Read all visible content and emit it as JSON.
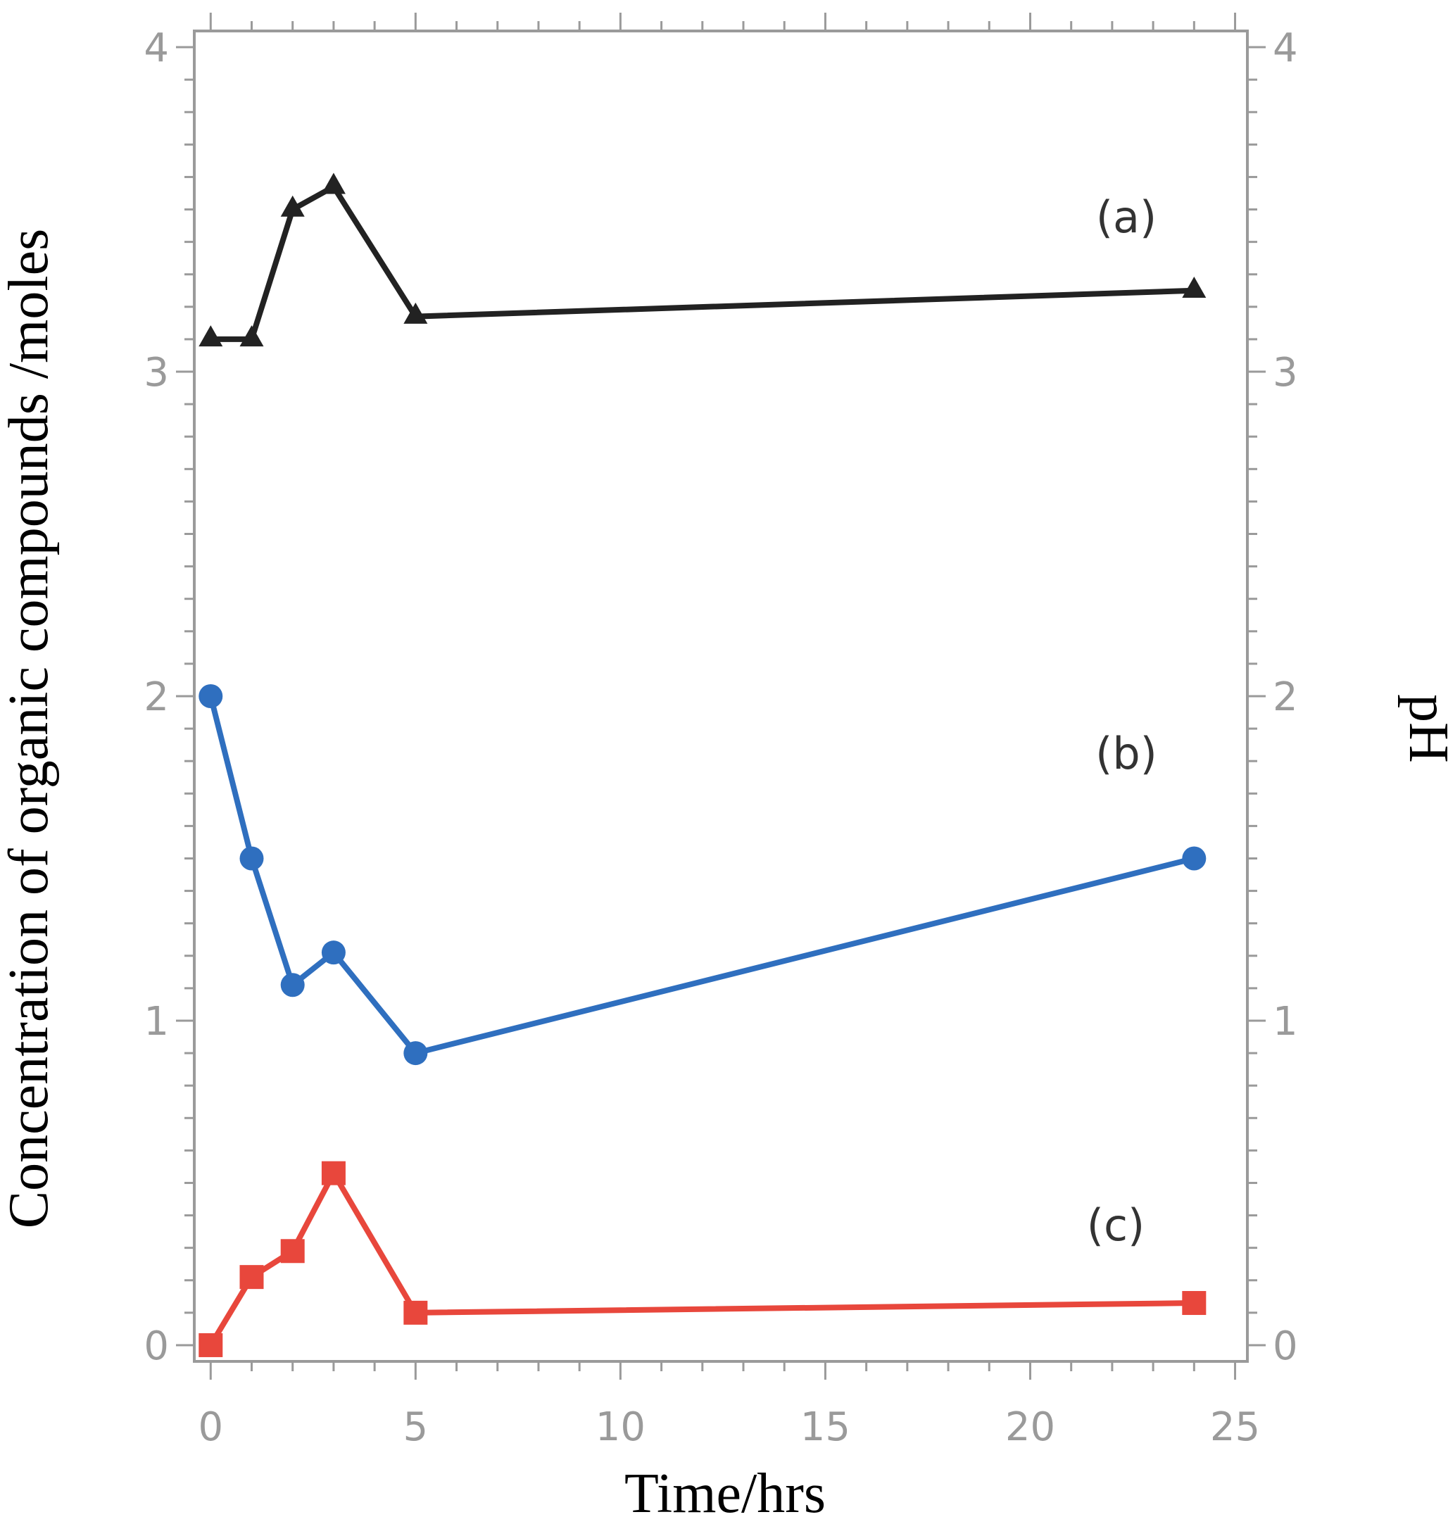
{
  "chart_data": {
    "type": "line",
    "xlabel": "Time/hrs",
    "ylabel": "Concentration of organic compounds /moles",
    "y2label": "pH",
    "xlim": [
      -0.4,
      25.3
    ],
    "ylim": [
      -0.05,
      4.05
    ],
    "xticks": [
      0,
      5,
      10,
      15,
      20,
      25
    ],
    "xtick_labels": [
      "0",
      "5",
      "10",
      "15",
      "20",
      "25"
    ],
    "yticks": [
      0,
      1,
      2,
      3,
      4
    ],
    "ytick_labels": [
      "0",
      "1",
      "2",
      "3",
      "4"
    ],
    "y2tick_labels": [
      "0",
      "1",
      "2",
      "3",
      "4"
    ],
    "series": [
      {
        "name": "(a)",
        "marker": "triangle",
        "color": "#222222",
        "x": [
          0,
          1,
          2,
          3,
          5,
          24
        ],
        "values": [
          3.1,
          3.1,
          3.5,
          3.57,
          3.17,
          3.25
        ]
      },
      {
        "name": "(b)",
        "marker": "circle",
        "color": "#2f6fbf",
        "x": [
          0,
          1,
          2,
          3,
          5,
          24
        ],
        "values": [
          2.0,
          1.5,
          1.11,
          1.21,
          0.9,
          1.5
        ]
      },
      {
        "name": "(c)",
        "marker": "square",
        "color": "#e8473c",
        "x": [
          0,
          1,
          2,
          3,
          5,
          24
        ],
        "values": [
          0.0,
          0.21,
          0.29,
          0.53,
          0.1,
          0.13
        ]
      }
    ]
  }
}
